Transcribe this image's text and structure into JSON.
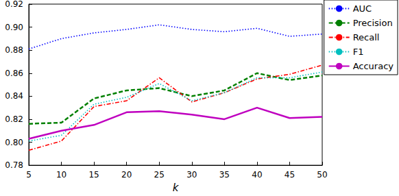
{
  "chart_data": {
    "type": "line",
    "xlabel": "k",
    "x": [
      5,
      10,
      15,
      20,
      25,
      30,
      35,
      40,
      45,
      50
    ],
    "series": [
      {
        "name": "AUC",
        "color": "#0000ff",
        "line_style": "dotted",
        "values": [
          0.881,
          0.89,
          0.895,
          0.898,
          0.902,
          0.898,
          0.896,
          0.899,
          0.892,
          0.894
        ]
      },
      {
        "name": "Precision",
        "color": "#008000",
        "line_style": "dashed",
        "values": [
          0.816,
          0.817,
          0.838,
          0.845,
          0.847,
          0.84,
          0.845,
          0.86,
          0.854,
          0.858
        ]
      },
      {
        "name": "Recall",
        "color": "#ff0000",
        "line_style": "dashdot",
        "values": [
          0.793,
          0.801,
          0.831,
          0.836,
          0.856,
          0.835,
          0.843,
          0.855,
          0.859,
          0.867
        ]
      },
      {
        "name": "F1",
        "color": "#00bfbf",
        "line_style": "dotted",
        "values": [
          0.801,
          0.806,
          0.833,
          0.839,
          0.851,
          0.836,
          0.843,
          0.856,
          0.856,
          0.861
        ]
      },
      {
        "name": "Accuracy",
        "color": "#bf00bf",
        "line_style": "solid",
        "values": [
          0.803,
          0.81,
          0.815,
          0.826,
          0.827,
          0.824,
          0.82,
          0.83,
          0.821,
          0.822
        ]
      }
    ],
    "xlim": [
      5,
      50
    ],
    "xticks": [
      5,
      10,
      15,
      20,
      25,
      30,
      35,
      40,
      45,
      50
    ],
    "ylim": [
      0.78,
      0.92
    ],
    "yticks": [
      0.78,
      {
        "value": 0.8,
        "label": "0.80"
      },
      0.82,
      0.84,
      0.86,
      0.88,
      {
        "value": 0.9,
        "label": "0.90"
      },
      0.92
    ],
    "grid": false,
    "legend": "right"
  }
}
